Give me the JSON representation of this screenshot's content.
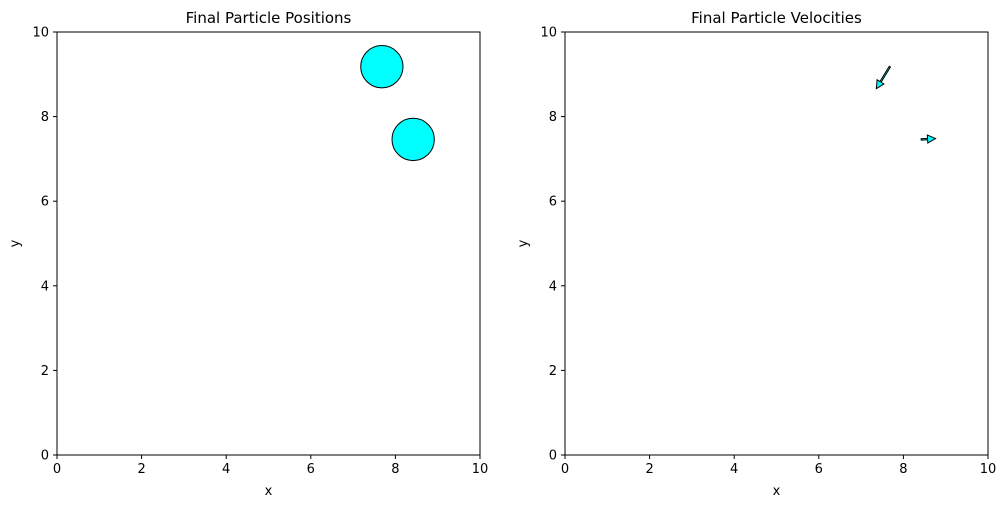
{
  "chart_data": [
    {
      "type": "scatter",
      "title": "Final Particle Positions",
      "xlabel": "x",
      "ylabel": "y",
      "xlim": [
        0,
        10
      ],
      "ylim": [
        0,
        10
      ],
      "xticks": [
        "0",
        "2",
        "4",
        "6",
        "8",
        "10"
      ],
      "yticks": [
        "0",
        "2",
        "4",
        "6",
        "8",
        "10"
      ],
      "grid": false,
      "marker_color": "#00ffff",
      "edge_color": "#000000",
      "points": [
        {
          "x": 7.68,
          "y": 9.18
        },
        {
          "x": 8.42,
          "y": 7.46
        }
      ]
    },
    {
      "type": "quiver",
      "title": "Final Particle Velocities",
      "xlabel": "x",
      "ylabel": "y",
      "xlim": [
        0,
        10
      ],
      "ylim": [
        0,
        10
      ],
      "xticks": [
        "0",
        "2",
        "4",
        "6",
        "8",
        "10"
      ],
      "yticks": [
        "0",
        "2",
        "4",
        "6",
        "8",
        "10"
      ],
      "grid": false,
      "arrow_color": "#00ffff",
      "edge_color": "#000000",
      "arrows": [
        {
          "x": 7.68,
          "y": 9.18,
          "u": -0.32,
          "v": -0.52
        },
        {
          "x": 8.42,
          "y": 7.46,
          "u": 0.34,
          "v": 0.02
        }
      ]
    }
  ]
}
